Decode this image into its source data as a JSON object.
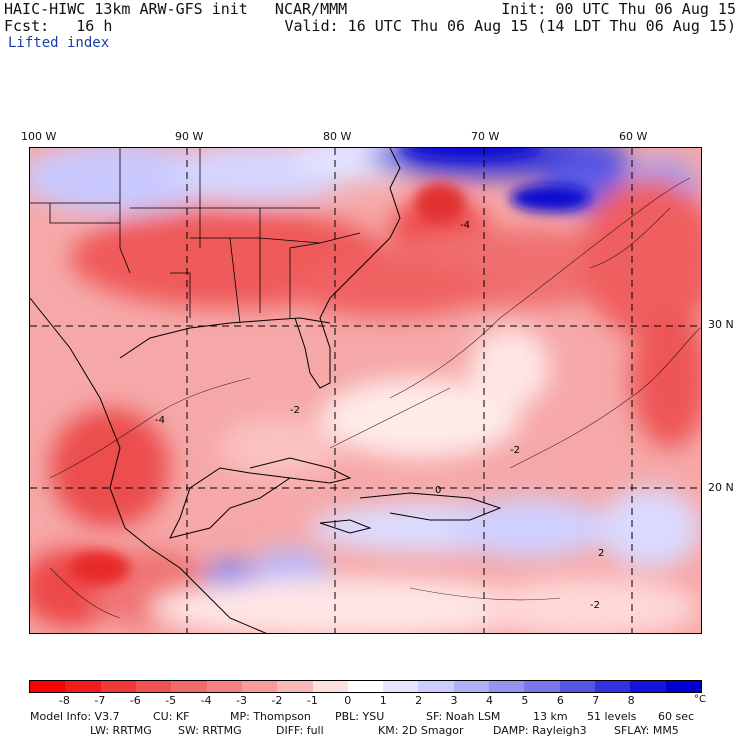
{
  "header": {
    "title": "HAIC-HIWC 13km ARW-GFS init   NCAR/MMM",
    "fcst": "Fcst:   16 h",
    "init": "Init: 00 UTC Thu 06 Aug 15",
    "valid": "Valid: 16 UTC Thu 06 Aug 15 (14 LDT Thu 06 Aug 15)",
    "field": "Lifted index"
  },
  "map": {
    "lon_labels": [
      "100 W",
      "90 W",
      "80 W",
      "70 W",
      "60 W"
    ],
    "lat_labels": [
      "30 N",
      "20 N"
    ],
    "contour_labels": [
      "-4",
      "-4",
      "-2",
      "-2",
      "-2",
      "2",
      "0"
    ]
  },
  "colorbar": {
    "labels": [
      "-8",
      "-7",
      "-6",
      "-5",
      "-4",
      "-3",
      "-2",
      "-1",
      "0",
      "1",
      "2",
      "3",
      "4",
      "5",
      "6",
      "7",
      "8"
    ],
    "unit": "°C",
    "colors": [
      "#ff0000",
      "#f21c1c",
      "#f03a3a",
      "#f05252",
      "#f26a6a",
      "#f48282",
      "#f79b9b",
      "#fab8b8",
      "#fde0e0",
      "#ffffff",
      "#e6e6ff",
      "#ccccff",
      "#b0b0f6",
      "#9494f0",
      "#7878ec",
      "#5656e6",
      "#3232e0",
      "#1414dc",
      "#0000d0"
    ]
  },
  "model_info": {
    "row1": [
      "Model Info: V3.7",
      "CU: KF",
      "MP: Thompson",
      "PBL: YSU",
      "SF: Noah LSM",
      "13 km",
      "51 levels",
      "60 sec"
    ],
    "row2": [
      "LW: RRTMG",
      "SW: RRTMG",
      "DIFF: full",
      "KM: 2D Smagor",
      "DAMP: Rayleigh3",
      "SFLAY: MM5"
    ]
  }
}
